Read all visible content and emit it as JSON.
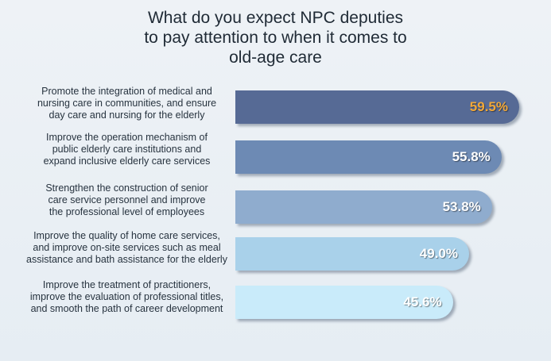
{
  "chart_data": {
    "type": "bar",
    "orientation": "horizontal",
    "title_lines": [
      "What do you expect NPC deputies",
      "to pay attention to when it comes to",
      "old-age care"
    ],
    "categories": [
      "Promote the integration of medical and nursing care in communities, and ensure day care and nursing for the elderly",
      "Improve the operation mechanism of public elderly care institutions and expand inclusive elderly care services",
      "Strengthen the construction of senior care service personnel and improve the professional level of employees",
      "Improve the quality of home care services, and improve on-site services such as meal assistance and bath assistance for the elderly",
      "Improve the treatment of practitioners, improve the evaluation of professional titles, and smooth the path of career development"
    ],
    "category_lines": [
      [
        "Promote the integration of medical and",
        "nursing care in communities, and ensure",
        "day care and nursing for the elderly"
      ],
      [
        "Improve the operation mechanism of",
        "public elderly care institutions and",
        "expand inclusive elderly care services"
      ],
      [
        "Strengthen the construction of senior",
        "care service personnel and improve",
        "the professional level of employees"
      ],
      [
        "Improve the quality of home care services,",
        "and improve on-site services such as meal",
        "assistance and bath assistance for the elderly"
      ],
      [
        "Improve the treatment of practitioners,",
        "improve the evaluation of professional titles,",
        "and smooth the path of career development"
      ]
    ],
    "values": [
      59.5,
      55.8,
      53.8,
      49.0,
      45.6
    ],
    "value_labels": [
      "59.5%",
      "55.8%",
      "53.8%",
      "49.0%",
      "45.6%"
    ],
    "unit": "%",
    "xlim": [
      0,
      65
    ],
    "grid": false,
    "legend": "none",
    "bar_colors": [
      "#566a95",
      "#6d8ab4",
      "#8facce",
      "#a9d1ea",
      "#c9ebfa"
    ],
    "value_label_colors": [
      "#f2a838",
      "#ffffff",
      "#ffffff",
      "#ffffff",
      "#ffffff"
    ]
  }
}
